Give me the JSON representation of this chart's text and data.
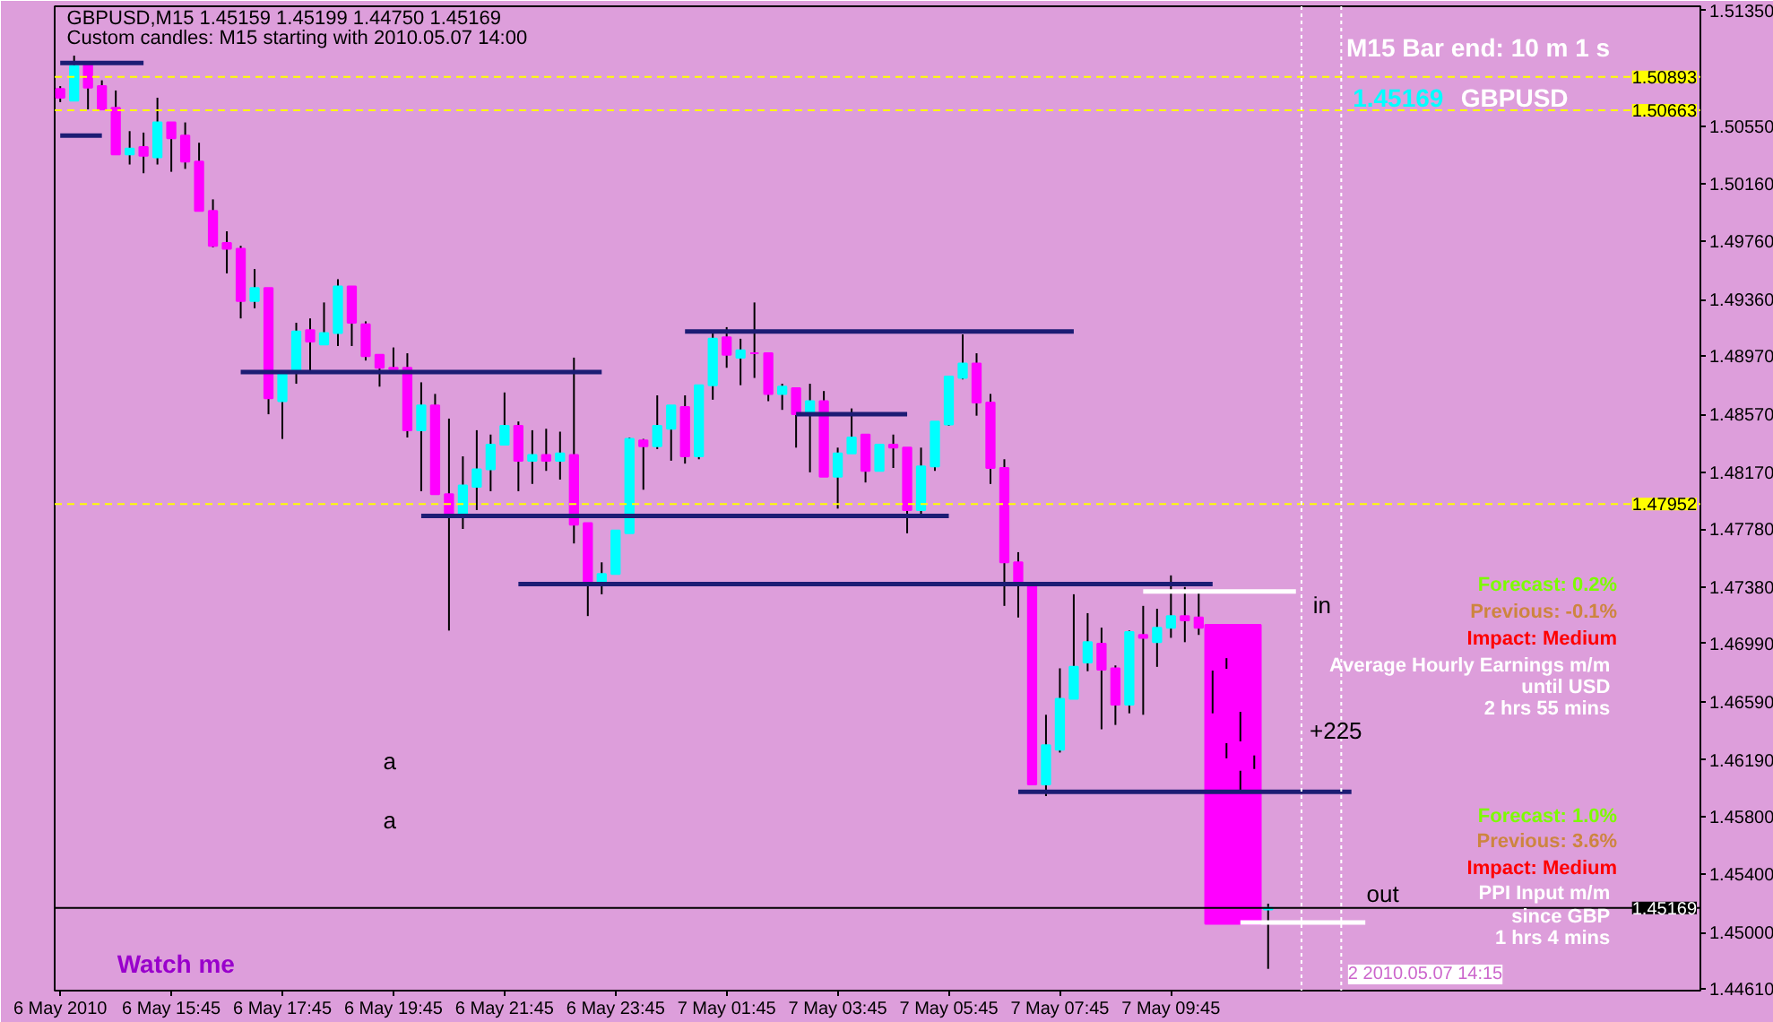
{
  "chart_data": {
    "type": "candlestick",
    "title": "GBPUSD,M15  1.45159 1.45199 1.44750 1.45169",
    "subtitle": "Custom candles: M15 starting with 2010.05.07 14:00",
    "x": [
      "2010-05-06T13:45",
      "2010-05-06T14:00",
      "2010-05-06T14:15",
      "2010-05-06T14:30",
      "2010-05-06T14:45",
      "2010-05-06T15:00",
      "2010-05-06T15:15",
      "2010-05-06T15:30",
      "2010-05-06T15:45",
      "2010-05-06T16:00",
      "2010-05-06T16:15",
      "2010-05-06T16:30",
      "2010-05-06T16:45",
      "2010-05-06T17:00",
      "2010-05-06T17:15",
      "2010-05-06T17:30",
      "2010-05-06T17:45",
      "2010-05-06T18:00",
      "2010-05-06T18:15",
      "2010-05-06T18:30",
      "2010-05-06T18:45",
      "2010-05-06T19:00",
      "2010-05-06T19:15",
      "2010-05-06T19:30",
      "2010-05-06T19:45",
      "2010-05-06T20:00",
      "2010-05-06T20:15",
      "2010-05-06T20:30",
      "2010-05-06T20:45",
      "2010-05-06T21:00",
      "2010-05-06T21:15",
      "2010-05-06T21:30",
      "2010-05-06T21:45",
      "2010-05-06T22:00",
      "2010-05-06T22:15",
      "2010-05-06T22:30",
      "2010-05-06T22:45",
      "2010-05-06T23:00",
      "2010-05-06T23:15",
      "2010-05-06T23:30",
      "2010-05-06T23:45",
      "2010-05-07T00:00",
      "2010-05-07T00:15",
      "2010-05-07T00:30",
      "2010-05-07T00:45",
      "2010-05-07T01:00",
      "2010-05-07T01:15",
      "2010-05-07T01:30",
      "2010-05-07T01:45",
      "2010-05-07T02:00",
      "2010-05-07T02:15",
      "2010-05-07T02:30",
      "2010-05-07T02:45",
      "2010-05-07T03:00",
      "2010-05-07T03:15",
      "2010-05-07T03:30",
      "2010-05-07T03:45",
      "2010-05-07T04:00",
      "2010-05-07T04:15",
      "2010-05-07T04:30",
      "2010-05-07T04:45",
      "2010-05-07T05:00",
      "2010-05-07T05:15",
      "2010-05-07T05:30",
      "2010-05-07T05:45",
      "2010-05-07T06:00",
      "2010-05-07T06:15",
      "2010-05-07T06:30",
      "2010-05-07T06:45",
      "2010-05-07T07:00",
      "2010-05-07T07:15",
      "2010-05-07T07:30",
      "2010-05-07T07:45",
      "2010-05-07T08:00",
      "2010-05-07T08:15",
      "2010-05-07T08:30",
      "2010-05-07T08:45",
      "2010-05-07T09:00",
      "2010-05-07T09:15",
      "2010-05-07T09:30",
      "2010-05-07T09:45",
      "2010-05-07T10:00",
      "2010-05-07T10:15",
      "2010-05-07T10:30",
      "2010-05-07T10:45",
      "2010-05-07T11:00",
      "2010-05-07T11:15",
      "2010-05-07T11:30"
    ],
    "ohlc": [
      [
        1.5081,
        1.5083,
        1.5072,
        1.5075
      ],
      [
        1.5073,
        1.5104,
        1.5073,
        1.5097
      ],
      [
        1.5098,
        1.5098,
        1.5067,
        1.5082
      ],
      [
        1.5083,
        1.5087,
        1.5067,
        1.5067
      ],
      [
        1.5068,
        1.508,
        1.5036,
        1.5036
      ],
      [
        1.5036,
        1.5052,
        1.5029,
        1.504
      ],
      [
        1.5041,
        1.5051,
        1.5023,
        1.5035
      ],
      [
        1.5034,
        1.5075,
        1.5029,
        1.5058
      ],
      [
        1.5058,
        1.5058,
        1.5024,
        1.5047
      ],
      [
        1.5049,
        1.5058,
        1.5026,
        1.5031
      ],
      [
        1.5031,
        1.5044,
        1.4997,
        1.4997
      ],
      [
        1.4997,
        1.5005,
        1.4972,
        1.4973
      ],
      [
        1.4975,
        1.4983,
        1.4954,
        1.4971
      ],
      [
        1.4971,
        1.4973,
        1.4923,
        1.4935
      ],
      [
        1.4935,
        1.4957,
        1.493,
        1.4944
      ],
      [
        1.4944,
        1.4944,
        1.4857,
        1.4868
      ],
      [
        1.4866,
        1.4886,
        1.484,
        1.4886
      ],
      [
        1.4886,
        1.492,
        1.4878,
        1.4914
      ],
      [
        1.4915,
        1.4923,
        1.4886,
        1.4907
      ],
      [
        1.4905,
        1.4934,
        1.4905,
        1.4913
      ],
      [
        1.4913,
        1.495,
        1.4904,
        1.4945
      ],
      [
        1.4945,
        1.4945,
        1.4904,
        1.492
      ],
      [
        1.4919,
        1.4921,
        1.4894,
        1.4897
      ],
      [
        1.4898,
        1.4898,
        1.4876,
        1.4889
      ],
      [
        1.4889,
        1.4903,
        1.4888,
        1.4888
      ],
      [
        1.4889,
        1.4899,
        1.4841,
        1.4846
      ],
      [
        1.4846,
        1.4879,
        1.4804,
        1.4863
      ],
      [
        1.4863,
        1.4871,
        1.4802,
        1.4802
      ],
      [
        1.4802,
        1.4854,
        1.4708,
        1.4787
      ],
      [
        1.4787,
        1.4828,
        1.4778,
        1.4808
      ],
      [
        1.4807,
        1.4846,
        1.4791,
        1.4819
      ],
      [
        1.4819,
        1.4843,
        1.4804,
        1.4836
      ],
      [
        1.4836,
        1.4872,
        1.4836,
        1.4849
      ],
      [
        1.4849,
        1.4852,
        1.4804,
        1.4825
      ],
      [
        1.4825,
        1.4846,
        1.4809,
        1.4829
      ],
      [
        1.4829,
        1.4847,
        1.4818,
        1.4825
      ],
      [
        1.4825,
        1.4845,
        1.4812,
        1.483
      ],
      [
        1.4829,
        1.4896,
        1.4768,
        1.4781
      ],
      [
        1.4782,
        1.4782,
        1.4718,
        1.474
      ],
      [
        1.474,
        1.4755,
        1.4733,
        1.4747
      ],
      [
        1.4747,
        1.4777,
        1.4747,
        1.4777
      ],
      [
        1.4775,
        1.4841,
        1.4775,
        1.484
      ],
      [
        1.4839,
        1.484,
        1.4805,
        1.4835
      ],
      [
        1.4835,
        1.487,
        1.4833,
        1.4849
      ],
      [
        1.4847,
        1.4863,
        1.4825,
        1.4863
      ],
      [
        1.4862,
        1.487,
        1.4823,
        1.4828
      ],
      [
        1.4828,
        1.4877,
        1.4826,
        1.4877
      ],
      [
        1.4877,
        1.4915,
        1.4867,
        1.4909
      ],
      [
        1.491,
        1.4917,
        1.4889,
        1.4898
      ],
      [
        1.4896,
        1.4909,
        1.4877,
        1.4901
      ],
      [
        1.4899,
        1.4934,
        1.4882,
        1.4899
      ],
      [
        1.4899,
        1.4899,
        1.4866,
        1.4871
      ],
      [
        1.4871,
        1.4878,
        1.486,
        1.4876
      ],
      [
        1.4875,
        1.4875,
        1.4834,
        1.4857
      ],
      [
        1.4857,
        1.4878,
        1.4817,
        1.4866
      ],
      [
        1.4866,
        1.4873,
        1.4814,
        1.4814
      ],
      [
        1.4814,
        1.4834,
        1.4792,
        1.483
      ],
      [
        1.483,
        1.4861,
        1.483,
        1.4841
      ],
      [
        1.4843,
        1.4843,
        1.481,
        1.4818
      ],
      [
        1.4818,
        1.4836,
        1.4818,
        1.4836
      ],
      [
        1.4836,
        1.4843,
        1.482,
        1.4834
      ],
      [
        1.4834,
        1.4834,
        1.4775,
        1.4791
      ],
      [
        1.4791,
        1.4834,
        1.4787,
        1.4821
      ],
      [
        1.4821,
        1.4852,
        1.4818,
        1.4852
      ],
      [
        1.485,
        1.4883,
        1.4849,
        1.4883
      ],
      [
        1.4882,
        1.4912,
        1.4881,
        1.4892
      ],
      [
        1.4892,
        1.4899,
        1.4856,
        1.4865
      ],
      [
        1.4865,
        1.4871,
        1.4809,
        1.482
      ],
      [
        1.482,
        1.4826,
        1.4725,
        1.4755
      ],
      [
        1.4755,
        1.4762,
        1.4717,
        1.474
      ],
      [
        1.4741,
        1.4741,
        1.4602,
        1.4602
      ],
      [
        1.4602,
        1.465,
        1.4594,
        1.4629
      ],
      [
        1.4626,
        1.4682,
        1.4624,
        1.4661
      ],
      [
        1.4661,
        1.4733,
        1.4661,
        1.4683
      ],
      [
        1.4686,
        1.472,
        1.468,
        1.47
      ],
      [
        1.4699,
        1.471,
        1.464,
        1.4681
      ],
      [
        1.4682,
        1.4684,
        1.4643,
        1.4657
      ],
      [
        1.4657,
        1.4708,
        1.4651,
        1.4707
      ],
      [
        1.4705,
        1.4725,
        1.465,
        1.4703
      ],
      [
        1.47,
        1.4723,
        1.4683,
        1.471
      ],
      [
        1.471,
        1.4746,
        1.4703,
        1.4718
      ],
      [
        1.4718,
        1.4738,
        1.47,
        1.4715
      ],
      [
        1.4717,
        1.4734,
        1.4705,
        1.471
      ],
      [
        1.4712,
        1.4712,
        1.4651,
        1.4681
      ],
      [
        1.4681,
        1.4689,
        1.462,
        1.4631
      ],
      [
        1.4631,
        1.4652,
        1.4597,
        1.4612
      ],
      [
        1.4612,
        1.4622,
        1.4515,
        1.4515
      ],
      [
        1.45159,
        1.45199,
        1.4475,
        1.45169
      ]
    ],
    "colors": [
      "#ff00ff",
      "#00ffff",
      "#ff00ff",
      "#ff00ff",
      "#ff00ff",
      "#00ffff",
      "#ff00ff",
      "#00ffff",
      "#ff00ff",
      "#ff00ff",
      "#ff00ff",
      "#ff00ff",
      "#ff00ff",
      "#ff00ff",
      "#00ffff",
      "#ff00ff",
      "#00ffff",
      "#00ffff",
      "#ff00ff",
      "#00ffff",
      "#00ffff",
      "#ff00ff",
      "#ff00ff",
      "#ff00ff",
      "#ff00ff",
      "#ff00ff",
      "#00ffff",
      "#ff00ff",
      "#ff00ff",
      "#00ffff",
      "#00ffff",
      "#00ffff",
      "#00ffff",
      "#ff00ff",
      "#00ffff",
      "#ff00ff",
      "#00ffff",
      "#ff00ff",
      "#ff00ff",
      "#00ffff",
      "#00ffff",
      "#00ffff",
      "#ff00ff",
      "#00ffff",
      "#00ffff",
      "#ff00ff",
      "#00ffff",
      "#00ffff",
      "#ff00ff",
      "#00ffff",
      "#ff00ff",
      "#ff00ff",
      "#00ffff",
      "#ff00ff",
      "#00ffff",
      "#ff00ff",
      "#00ffff",
      "#00ffff",
      "#ff00ff",
      "#00ffff",
      "#ff00ff",
      "#ff00ff",
      "#00ffff",
      "#00ffff",
      "#00ffff",
      "#00ffff",
      "#ff00ff",
      "#ff00ff",
      "#ff00ff",
      "#ff00ff",
      "#ff00ff",
      "#00ffff",
      "#00ffff",
      "#00ffff",
      "#00ffff",
      "#ff00ff",
      "#ff00ff",
      "#00ffff",
      "#ff00ff",
      "#00ffff",
      "#00ffff",
      "#ff00ff",
      "#ff00ff",
      "#ff00ff",
      "#ff00ff",
      "#ff00ff",
      "#ff00ff",
      "#00ffff"
    ],
    "series": [
      {
        "type": "line",
        "color": "#1c1c74",
        "x": [
          "2010-05-06T13:45",
          "2010-05-06T15:15"
        ],
        "values": [
          1.5099,
          1.5099
        ]
      },
      {
        "type": "line",
        "color": "#1c1c74",
        "x": [
          "2010-05-06T13:45",
          "2010-05-06T14:30"
        ],
        "values": [
          1.5049,
          1.5049
        ]
      },
      {
        "type": "line",
        "color": "#1c1c74",
        "x": [
          "2010-05-06T17:00",
          "2010-05-06T23:30"
        ],
        "values": [
          1.4886,
          1.4886
        ]
      },
      {
        "type": "line",
        "color": "#1c1c74",
        "x": [
          "2010-05-06T20:15",
          "2010-05-07T05:45"
        ],
        "values": [
          1.4787,
          1.4787
        ]
      },
      {
        "type": "line",
        "color": "#1c1c74",
        "x": [
          "2010-05-06T22:00",
          "2010-05-07T10:30"
        ],
        "values": [
          1.474,
          1.474
        ]
      },
      {
        "type": "line",
        "color": "#1c1c74",
        "x": [
          "2010-05-07T01:00",
          "2010-05-07T08:00"
        ],
        "values": [
          1.4914,
          1.4914
        ]
      },
      {
        "type": "line",
        "color": "#1c1c74",
        "x": [
          "2010-05-07T03:00",
          "2010-05-07T05:00"
        ],
        "values": [
          1.4857,
          1.4857
        ]
      },
      {
        "type": "line",
        "color": "#1c1c74",
        "x": [
          "2010-05-07T07:00",
          "2010-05-07T13:00"
        ],
        "values": [
          1.4597,
          1.4597
        ]
      },
      {
        "type": "line",
        "color": "#ffffff",
        "x": [
          "2010-05-07T09:15",
          "2010-05-07T12:00"
        ],
        "values": [
          1.4735,
          1.4735
        ]
      },
      {
        "type": "line",
        "color": "#ffffff",
        "x": [
          "2010-05-07T11:00",
          "2010-05-07T13:15"
        ],
        "values": [
          1.4507,
          1.4507
        ]
      },
      {
        "type": "bar",
        "color": "#ff00ff",
        "x": [
          "2010-05-07T10:52"
        ],
        "base": [
          1.4506
        ],
        "values": [
          0.0206
        ]
      }
    ],
    "xlim": [
      "2010-05-06T13:39",
      "2010-05-07T19:17"
    ],
    "ylim": [
      1.446,
      1.5138
    ],
    "xticks": [
      {
        "value": "2010-05-06T13:45",
        "label": "6 May 2010"
      },
      {
        "value": "2010-05-06T15:45",
        "label": "6 May 15:45"
      },
      {
        "value": "2010-05-06T17:45",
        "label": "6 May 17:45"
      },
      {
        "value": "2010-05-06T19:45",
        "label": "6 May 19:45"
      },
      {
        "value": "2010-05-06T21:45",
        "label": "6 May 21:45"
      },
      {
        "value": "2010-05-06T23:45",
        "label": "6 May 23:45"
      },
      {
        "value": "2010-05-07T01:45",
        "label": "7 May 01:45"
      },
      {
        "value": "2010-05-07T03:45",
        "label": "7 May 03:45"
      },
      {
        "value": "2010-05-07T05:45",
        "label": "7 May 05:45"
      },
      {
        "value": "2010-05-07T07:45",
        "label": "7 May 07:45"
      },
      {
        "value": "2010-05-07T09:45",
        "label": "7 May 09:45"
      }
    ],
    "yticks": [
      {
        "value": 1.5135,
        "label": "1.51350"
      },
      {
        "value": 1.5055,
        "label": "1.50550"
      },
      {
        "value": 1.5016,
        "label": "1.50160"
      },
      {
        "value": 1.4976,
        "label": "1.49760"
      },
      {
        "value": 1.4936,
        "label": "1.49360"
      },
      {
        "value": 1.4897,
        "label": "1.48970"
      },
      {
        "value": 1.4857,
        "label": "1.48570"
      },
      {
        "value": 1.4817,
        "label": "1.48170"
      },
      {
        "value": 1.4778,
        "label": "1.47780"
      },
      {
        "value": 1.4738,
        "label": "1.47380"
      },
      {
        "value": 1.4699,
        "label": "1.46990"
      },
      {
        "value": 1.4659,
        "label": "1.46590"
      },
      {
        "value": 1.4619,
        "label": "1.46190"
      },
      {
        "value": 1.458,
        "label": "1.45800"
      },
      {
        "value": 1.454,
        "label": "1.45400"
      },
      {
        "value": 1.45,
        "label": "1.45000"
      },
      {
        "value": 1.4461,
        "label": "1.44610"
      }
    ],
    "ref_lines": [
      {
        "axis": "y",
        "value": 1.50893,
        "label": "1.50893",
        "color": "#ffff00",
        "line_style": "dashed"
      },
      {
        "axis": "y",
        "value": 1.50663,
        "label": "1.50663",
        "color": "#ffff00",
        "line_style": "dashed"
      },
      {
        "axis": "y",
        "value": 1.47952,
        "label": "1.47952",
        "color": "#ffff00",
        "line_style": "dashed"
      },
      {
        "axis": "y",
        "value": 1.45169,
        "label": "1.45169",
        "color": "#000000",
        "line_style": "solid"
      },
      {
        "axis": "x",
        "value": "2010-05-07T12:06",
        "color": "#ffffff",
        "line_style": "dotted"
      },
      {
        "axis": "x",
        "value": "2010-05-07T12:49",
        "color": "#ffffff",
        "line_style": "dotted"
      }
    ],
    "annotations": [
      "a",
      "a",
      "in",
      "+225",
      "out",
      "M15 Bar end: 10 m 1 s",
      "1.45169",
      "GBPUSD",
      "Forecast: 0.2%",
      "Previous: -0.1%",
      "Impact: Medium",
      "Average Hourly Earnings m/m",
      "until USD",
      "2 hrs 55 mins",
      "Forecast: 1.0%",
      "Previous: 3.6%",
      "Impact: Medium",
      "PPI Input m/m",
      "since GBP",
      "1 hrs 4 mins",
      "Watch me",
      "2 2010.05.07 14:15"
    ]
  }
}
